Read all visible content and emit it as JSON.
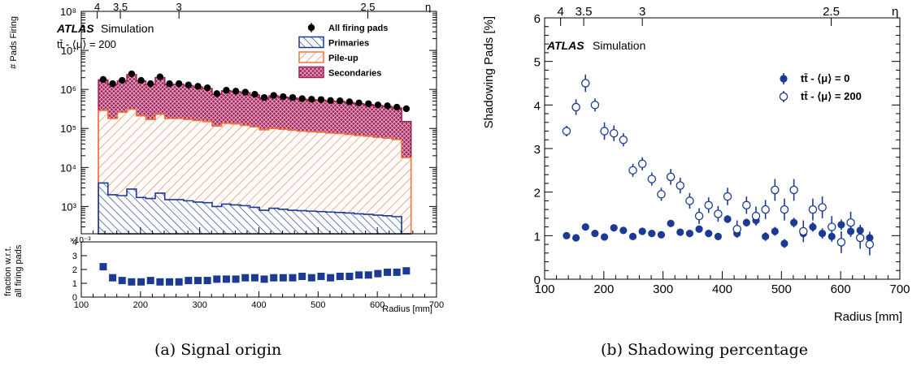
{
  "captions": {
    "a": "(a) Signal origin",
    "b": "(b) Shadowing percentage"
  },
  "eta_axis": {
    "symbol": "η",
    "ticks": [
      {
        "label": "4",
        "radius": 127
      },
      {
        "label": "3.5",
        "radius": 166
      },
      {
        "label": "3",
        "radius": 265
      },
      {
        "label": "2.5",
        "radius": 584
      }
    ]
  },
  "chart_data": [
    {
      "id": "signal-origin",
      "type": "bar",
      "title": "",
      "panels": {
        "top": {
          "ylabel": "# Pads Firing",
          "yscale": "log",
          "ylim": [
            200,
            100000000
          ],
          "yticks": [
            {
              "label": "10³",
              "value": 1000
            },
            {
              "label": "10⁴",
              "value": 10000
            },
            {
              "label": "10⁵",
              "value": 100000
            },
            {
              "label": "10⁶",
              "value": 1000000
            },
            {
              "label": "10⁷",
              "value": 10000000
            },
            {
              "label": "10⁸",
              "value": 100000000
            }
          ]
        },
        "bottom": {
          "ylabel_line1": "fraction w.r.t.",
          "ylabel_line2": "all firing pads",
          "ylim": [
            0,
            4
          ],
          "yticks": [
            "0",
            "1",
            "2",
            "3",
            "4"
          ],
          "multiplier": "×10⁻³"
        }
      },
      "xlabel": "Radius [mm]",
      "xlim": [
        100,
        700
      ],
      "xticks": [
        "100",
        "200",
        "300",
        "400",
        "500",
        "600",
        "700"
      ],
      "atlas_label": "ATLAS",
      "sim_label": "Simulation",
      "process_label": "tt̄ - ⟨μ⟩ = 200",
      "legend_position": "top-right",
      "x": [
        137,
        153,
        169,
        185,
        201,
        217,
        233,
        249,
        265,
        281,
        297,
        313,
        329,
        345,
        361,
        377,
        393,
        409,
        425,
        441,
        457,
        473,
        489,
        505,
        521,
        537,
        553,
        569,
        585,
        601,
        617,
        633,
        649
      ],
      "series": [
        {
          "name": "All firing pads",
          "kind": "points",
          "color": "#000000",
          "values": [
            1800000,
            1400000,
            1700000,
            2500000,
            1700000,
            1400000,
            2100000,
            1400000,
            1400000,
            1300000,
            1200000,
            1100000,
            780000,
            950000,
            900000,
            850000,
            750000,
            620000,
            700000,
            650000,
            620000,
            580000,
            560000,
            550000,
            520000,
            510000,
            480000,
            450000,
            430000,
            400000,
            380000,
            350000,
            320000
          ]
        },
        {
          "name": "Secondaries",
          "kind": "hist",
          "color": "#a4205a",
          "values": [
            1750000,
            1350000,
            1650000,
            2400000,
            1650000,
            1350000,
            2000000,
            1350000,
            1350000,
            1250000,
            1150000,
            1050000,
            750000,
            920000,
            870000,
            820000,
            720000,
            600000,
            680000,
            630000,
            600000,
            560000,
            540000,
            530000,
            500000,
            490000,
            460000,
            430000,
            410000,
            385000,
            365000,
            335000,
            150000
          ]
        },
        {
          "name": "Pile-up",
          "kind": "hist",
          "color": "#f2743a",
          "values": [
            290000,
            180000,
            260000,
            310000,
            210000,
            170000,
            230000,
            180000,
            180000,
            170000,
            160000,
            150000,
            115000,
            135000,
            130000,
            120000,
            110000,
            92000,
            100000,
            95000,
            90000,
            85000,
            82000,
            80000,
            76000,
            74000,
            70000,
            66000,
            63000,
            59000,
            56000,
            52000,
            18000
          ]
        },
        {
          "name": "Primaries",
          "kind": "hist",
          "color": "#1c3a94",
          "values": [
            4000,
            2000,
            1900,
            2800,
            1700,
            1600,
            2200,
            1500,
            1500,
            1400,
            1300,
            1250,
            1000,
            1150,
            1100,
            1050,
            950,
            800,
            900,
            850,
            800,
            780,
            760,
            740,
            720,
            700,
            680,
            650,
            630,
            600,
            580,
            550,
            200
          ]
        },
        {
          "name": "",
          "kind": "fraction",
          "panel": "bottom",
          "color": "#1c3a94",
          "values": [
            2.2,
            1.4,
            1.2,
            1.1,
            1.1,
            1.2,
            1.1,
            1.1,
            1.1,
            1.2,
            1.2,
            1.2,
            1.3,
            1.3,
            1.3,
            1.4,
            1.4,
            1.3,
            1.4,
            1.4,
            1.4,
            1.5,
            1.4,
            1.5,
            1.4,
            1.5,
            1.5,
            1.6,
            1.6,
            1.7,
            1.8,
            1.8,
            1.9
          ]
        }
      ]
    },
    {
      "id": "shadowing-percentage",
      "type": "scatter",
      "title": "",
      "xlabel": "Radius [mm]",
      "ylabel": "Shadowing Pads [%]",
      "xlim": [
        100,
        700
      ],
      "ylim": [
        0,
        6
      ],
      "xticks": [
        "100",
        "200",
        "300",
        "400",
        "500",
        "600",
        "700"
      ],
      "yticks": [
        "0",
        "1",
        "2",
        "3",
        "4",
        "5",
        "6"
      ],
      "atlas_label": "ATLAS",
      "sim_label": "Simulation",
      "legend_position": "top-right",
      "x": [
        137,
        153,
        169,
        185,
        201,
        217,
        233,
        249,
        265,
        281,
        297,
        313,
        329,
        345,
        361,
        377,
        393,
        409,
        425,
        441,
        457,
        473,
        489,
        505,
        521,
        537,
        553,
        569,
        585,
        601,
        617,
        633,
        649
      ],
      "series": [
        {
          "name": "tt̄ - ⟨μ⟩ = 0",
          "marker": "filled",
          "color": "#1c3a94",
          "values": [
            1.0,
            0.95,
            1.2,
            1.05,
            0.97,
            1.18,
            1.12,
            0.98,
            1.1,
            1.05,
            1.02,
            1.28,
            1.08,
            1.05,
            1.15,
            1.05,
            0.98,
            1.38,
            1.05,
            1.3,
            1.35,
            0.98,
            1.1,
            0.82,
            1.3,
            1.05,
            1.2,
            1.05,
            0.98,
            1.25,
            1.1,
            1.12,
            0.95
          ],
          "errors": [
            0.06,
            0.06,
            0.07,
            0.07,
            0.06,
            0.07,
            0.07,
            0.07,
            0.07,
            0.07,
            0.07,
            0.08,
            0.08,
            0.08,
            0.08,
            0.08,
            0.08,
            0.09,
            0.09,
            0.09,
            0.1,
            0.1,
            0.1,
            0.1,
            0.11,
            0.11,
            0.11,
            0.12,
            0.12,
            0.12,
            0.13,
            0.13,
            0.14
          ]
        },
        {
          "name": "tt̄ - ⟨μ⟩ = 200",
          "marker": "open",
          "color": "#1c3a94",
          "values": [
            3.4,
            3.95,
            4.5,
            4.0,
            3.4,
            3.35,
            3.2,
            2.5,
            2.65,
            2.3,
            1.95,
            2.35,
            2.15,
            1.8,
            1.45,
            1.7,
            1.5,
            1.9,
            1.15,
            1.7,
            1.45,
            1.6,
            2.05,
            1.6,
            2.05,
            1.1,
            1.6,
            1.65,
            1.2,
            0.85,
            1.3,
            0.95,
            0.8
          ],
          "errors": [
            0.12,
            0.18,
            0.2,
            0.15,
            0.2,
            0.18,
            0.15,
            0.15,
            0.15,
            0.15,
            0.15,
            0.18,
            0.18,
            0.18,
            0.18,
            0.18,
            0.18,
            0.2,
            0.2,
            0.2,
            0.22,
            0.22,
            0.25,
            0.25,
            0.25,
            0.25,
            0.25,
            0.25,
            0.25,
            0.25,
            0.25,
            0.25,
            0.25
          ]
        }
      ]
    }
  ]
}
